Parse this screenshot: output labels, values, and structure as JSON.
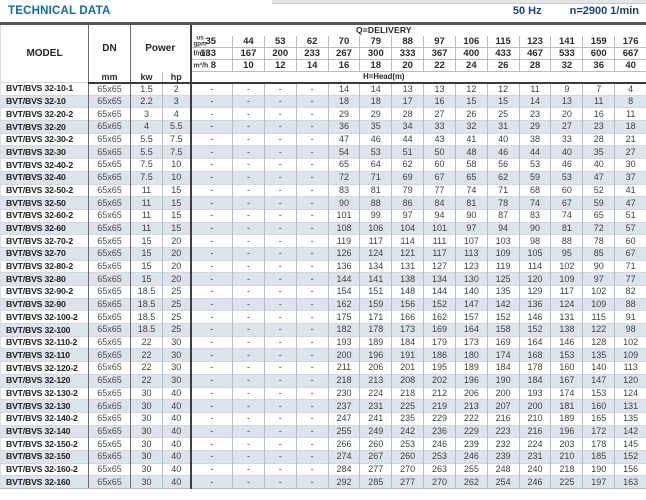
{
  "page": {
    "title": "TECHNICAL DATA",
    "frequency": "50 Hz",
    "speed": "n=2900 1/min"
  },
  "colors": {
    "title_blue": "#1269ae",
    "spec_blue": "#1c4280",
    "row_stripe": "#dce3eb"
  },
  "table": {
    "header": {
      "model": "MODEL",
      "dn": "DN",
      "dn_unit": "mm",
      "power": "Power",
      "kw": "kw",
      "hp": "hp",
      "delivery": "Q=DELIVERY",
      "head": "H=Head(m)",
      "units": {
        "gpm": [
          "us",
          "gpm"
        ],
        "lmin": "l/min",
        "m3h": "m³/h"
      },
      "gpm": [
        35,
        44,
        53,
        62,
        70,
        79,
        88,
        97,
        106,
        115,
        123,
        141,
        159,
        176
      ],
      "lmin": [
        133,
        167,
        200,
        233,
        267,
        300,
        333,
        367,
        400,
        433,
        467,
        533,
        600,
        667
      ],
      "m3h": [
        8,
        10,
        12,
        14,
        16,
        18,
        20,
        22,
        24,
        26,
        28,
        32,
        36,
        40
      ]
    },
    "rows": [
      {
        "model": "BVT/BVS 32-10-1",
        "dn": "65x65",
        "kw": "1.5",
        "hp": "2",
        "head": [
          "-",
          "-",
          "-",
          "-",
          14,
          14,
          13,
          13,
          12,
          12,
          11,
          9,
          7,
          4
        ]
      },
      {
        "model": "BVT/BVS 32-10",
        "dn": "65x65",
        "kw": "2.2",
        "hp": "3",
        "head": [
          "-",
          "-",
          "-",
          "-",
          18,
          18,
          17,
          16,
          15,
          15,
          14,
          13,
          11,
          8
        ]
      },
      {
        "model": "BVT/BVS 32-20-2",
        "dn": "65x65",
        "kw": "3",
        "hp": "4",
        "head": [
          "-",
          "-",
          "-",
          "-",
          29,
          29,
          28,
          27,
          26,
          25,
          23,
          20,
          16,
          11
        ]
      },
      {
        "model": "BVT/BVS 32-20",
        "dn": "65x65",
        "kw": "4",
        "hp": "5.5",
        "head": [
          "-",
          "-",
          "-",
          "-",
          36,
          35,
          34,
          33,
          32,
          31,
          29,
          27,
          23,
          18
        ]
      },
      {
        "model": "BVT/BVS 32-30-2",
        "dn": "65x65",
        "kw": "5.5",
        "hp": "7.5",
        "head": [
          "-",
          "-",
          "-",
          "-",
          47,
          46,
          44,
          43,
          41,
          40,
          38,
          33,
          28,
          21
        ]
      },
      {
        "model": "BVT/BVS 32-30",
        "dn": "65x65",
        "kw": "5.5",
        "hp": "7.5",
        "head": [
          "-",
          "-",
          "-",
          "-",
          54,
          53,
          51,
          50,
          48,
          46,
          44,
          40,
          35,
          27
        ]
      },
      {
        "model": "BVT/BVS 32-40-2",
        "dn": "65x65",
        "kw": "7.5",
        "hp": "10",
        "head": [
          "-",
          "-",
          "-",
          "-",
          65,
          64,
          62,
          60,
          58,
          56,
          53,
          46,
          40,
          30
        ]
      },
      {
        "model": "BVT/BVS 32-40",
        "dn": "65x65",
        "kw": "7.5",
        "hp": "10",
        "head": [
          "-",
          "-",
          "-",
          "-",
          72,
          71,
          69,
          67,
          65,
          62,
          59,
          53,
          47,
          37
        ]
      },
      {
        "model": "BVT/BVS 32-50-2",
        "dn": "65x65",
        "kw": "11",
        "hp": "15",
        "head": [
          "-",
          "-",
          "-",
          "-",
          83,
          81,
          79,
          77,
          74,
          71,
          68,
          60,
          52,
          41
        ]
      },
      {
        "model": "BVT/BVS 32-50",
        "dn": "65x65",
        "kw": "11",
        "hp": "15",
        "head": [
          "-",
          "-",
          "-",
          "-",
          90,
          88,
          86,
          84,
          81,
          78,
          74,
          67,
          59,
          47
        ]
      },
      {
        "model": "BVT/BVS 32-60-2",
        "dn": "65x65",
        "kw": "11",
        "hp": "15",
        "head": [
          "-",
          "-",
          "-",
          "-",
          101,
          99,
          97,
          94,
          90,
          87,
          83,
          74,
          65,
          51
        ]
      },
      {
        "model": "BVT/BVS 32-60",
        "dn": "65x65",
        "kw": "11",
        "hp": "15",
        "head": [
          "-",
          "-",
          "-",
          "-",
          108,
          106,
          104,
          101,
          97,
          94,
          90,
          81,
          72,
          57
        ]
      },
      {
        "model": "BVT/BVS 32-70-2",
        "dn": "65x65",
        "kw": "15",
        "hp": "20",
        "head": [
          "-",
          "-",
          "-",
          "-",
          119,
          117,
          114,
          111,
          107,
          103,
          98,
          88,
          78,
          60
        ]
      },
      {
        "model": "BVT/BVS 32-70",
        "dn": "65x65",
        "kw": "15",
        "hp": "20",
        "head": [
          "-",
          "-",
          "-",
          "-",
          126,
          124,
          121,
          117,
          113,
          109,
          105,
          95,
          85,
          67
        ]
      },
      {
        "model": "BVT/BVS 32-80-2",
        "dn": "65x65",
        "kw": "15",
        "hp": "20",
        "head": [
          "-",
          "-",
          "-",
          "-",
          136,
          134,
          131,
          127,
          123,
          119,
          114,
          102,
          90,
          71
        ]
      },
      {
        "model": "BVT/BVS 32-80",
        "dn": "65x65",
        "kw": "15",
        "hp": "20",
        "head": [
          "-",
          "-",
          "-",
          "-",
          144,
          141,
          138,
          134,
          130,
          125,
          120,
          109,
          97,
          77
        ]
      },
      {
        "model": "BVT/BVS 32-90-2",
        "dn": "65x65",
        "kw": "18.5",
        "hp": "25",
        "head": [
          "-",
          "-",
          "-",
          "-",
          154,
          151,
          148,
          144,
          140,
          135,
          129,
          117,
          102,
          82
        ]
      },
      {
        "model": "BVT/BVS 32-90",
        "dn": "65x65",
        "kw": "18.5",
        "hp": "25",
        "head": [
          "-",
          "-",
          "-",
          "-",
          162,
          159,
          156,
          152,
          147,
          142,
          136,
          124,
          109,
          88
        ]
      },
      {
        "model": "BVT/BVS 32-100-2",
        "dn": "65x65",
        "kw": "18.5",
        "hp": "25",
        "head": [
          "-",
          "-",
          "-",
          "-",
          175,
          171,
          166,
          162,
          157,
          152,
          146,
          131,
          115,
          91
        ]
      },
      {
        "model": "BVT/BVS 32-100",
        "dn": "65x65",
        "kw": "18.5",
        "hp": "25",
        "head": [
          "-",
          "-",
          "-",
          "-",
          182,
          178,
          173,
          169,
          164,
          158,
          152,
          138,
          122,
          98
        ]
      },
      {
        "model": "BVT/BVS 32-110-2",
        "dn": "65x65",
        "kw": "22",
        "hp": "30",
        "head": [
          "-",
          "-",
          "-",
          "-",
          193,
          189,
          184,
          179,
          173,
          169,
          164,
          146,
          128,
          102
        ]
      },
      {
        "model": "BVT/BVS 32-110",
        "dn": "65x65",
        "kw": "22",
        "hp": "30",
        "head": [
          "-",
          "-",
          "-",
          "-",
          200,
          196,
          191,
          186,
          180,
          174,
          168,
          153,
          135,
          109
        ]
      },
      {
        "model": "BVT/BVS 32-120-2",
        "dn": "65x65",
        "kw": "22",
        "hp": "30",
        "head": [
          "-",
          "-",
          "-",
          "-",
          211,
          206,
          201,
          195,
          189,
          184,
          178,
          160,
          140,
          113
        ]
      },
      {
        "model": "BVT/BVS 32-120",
        "dn": "65x65",
        "kw": "22",
        "hp": "30",
        "head": [
          "-",
          "-",
          "-",
          "-",
          218,
          213,
          208,
          202,
          196,
          190,
          184,
          167,
          147,
          120
        ]
      },
      {
        "model": "BVT/BVS 32-130-2",
        "dn": "65x65",
        "kw": "30",
        "hp": "40",
        "head": [
          "-",
          "-",
          "-",
          "-",
          230,
          224,
          218,
          212,
          206,
          200,
          193,
          174,
          153,
          124
        ]
      },
      {
        "model": "BVT/BVS 32-130",
        "dn": "65x65",
        "kw": "30",
        "hp": "40",
        "head": [
          "-",
          "-",
          "-",
          "-",
          237,
          231,
          225,
          219,
          213,
          207,
          200,
          181,
          160,
          131
        ]
      },
      {
        "model": "BVT/BVS 32-140-2",
        "dn": "65x65",
        "kw": "30",
        "hp": "40",
        "head": [
          "-",
          "-",
          "-",
          "-",
          247,
          241,
          235,
          229,
          222,
          216,
          210,
          189,
          165,
          135
        ]
      },
      {
        "model": "BVT/BVS 32-140",
        "dn": "65x65",
        "kw": "30",
        "hp": "40",
        "head": [
          "-",
          "-",
          "-",
          "-",
          255,
          249,
          242,
          236,
          229,
          223,
          216,
          196,
          172,
          142
        ]
      },
      {
        "model": "BVT/BVS 32-150-2",
        "dn": "65x65",
        "kw": "30",
        "hp": "40",
        "head": [
          "-",
          "-",
          "-",
          "-",
          266,
          260,
          253,
          246,
          239,
          232,
          224,
          203,
          178,
          145
        ]
      },
      {
        "model": "BVT/BVS 32-150",
        "dn": "65x65",
        "kw": "30",
        "hp": "40",
        "head": [
          "-",
          "-",
          "-",
          "-",
          274,
          267,
          260,
          253,
          246,
          239,
          231,
          210,
          185,
          152
        ]
      },
      {
        "model": "BVT/BVS 32-160-2",
        "dn": "65x65",
        "kw": "30",
        "hp": "40",
        "head": [
          "-",
          "-",
          "-",
          "-",
          284,
          277,
          270,
          263,
          255,
          248,
          240,
          218,
          190,
          156
        ]
      },
      {
        "model": "BVT/BVS 32-160",
        "dn": "65x65",
        "kw": "30",
        "hp": "40",
        "head": [
          "-",
          "-",
          "-",
          "-",
          292,
          285,
          277,
          270,
          262,
          254,
          246,
          225,
          197,
          163
        ]
      }
    ]
  }
}
